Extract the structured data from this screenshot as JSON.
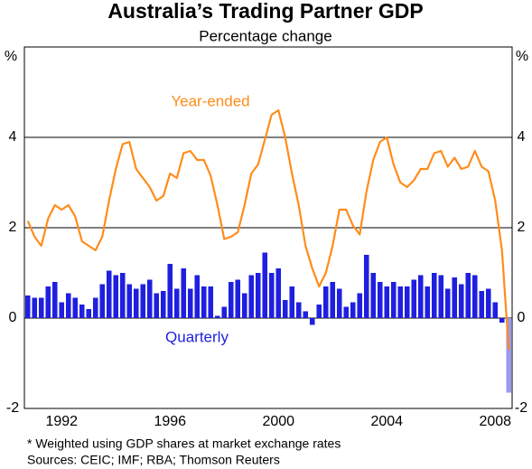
{
  "chart_data": {
    "type": "bar-line",
    "title": "Australia’s Trading Partner GDP",
    "subtitle": "Percentage change",
    "y_unit": "%",
    "annotations": [
      "Year-ended",
      "Quarterly"
    ],
    "footnotes": [
      "*  Weighted using GDP shares at market exchange rates",
      "Sources: CEIC; IMF; RBA; Thomson Reuters"
    ],
    "x": [
      1991.25,
      1991.5,
      1991.75,
      1992,
      1992.25,
      1992.5,
      1992.75,
      1993,
      1993.25,
      1993.5,
      1993.75,
      1994,
      1994.25,
      1994.5,
      1994.75,
      1995,
      1995.25,
      1995.5,
      1995.75,
      1996,
      1996.25,
      1996.5,
      1996.75,
      1997,
      1997.25,
      1997.5,
      1997.75,
      1998,
      1998.25,
      1998.5,
      1998.75,
      1999,
      1999.25,
      1999.5,
      1999.75,
      2000,
      2000.25,
      2000.5,
      2000.75,
      2001,
      2001.25,
      2001.5,
      2001.75,
      2002,
      2002.25,
      2002.5,
      2002.75,
      2003,
      2003.25,
      2003.5,
      2003.75,
      2004,
      2004.25,
      2004.5,
      2004.75,
      2005,
      2005.25,
      2005.5,
      2005.75,
      2006,
      2006.25,
      2006.5,
      2006.75,
      2007,
      2007.25,
      2007.5,
      2007.75,
      2008,
      2008.25,
      2008.5,
      2008.75,
      2009
    ],
    "xlim": [
      1991.125,
      2009.125
    ],
    "xticks": [
      {
        "value": 1992.5,
        "label": "1992"
      },
      {
        "value": 1996.5,
        "label": "1996"
      },
      {
        "value": 2000.5,
        "label": "2000"
      },
      {
        "value": 2004.5,
        "label": "2004"
      },
      {
        "value": 2008.5,
        "label": "2008"
      }
    ],
    "ylim": [
      -2,
      6
    ],
    "yticks": [
      -2,
      0,
      2,
      4
    ],
    "grid": true,
    "series": [
      {
        "name": "Quarterly",
        "kind": "bar",
        "color": "#1f1fe0",
        "colors": [
          "#1f1fe0",
          "#1f1fe0",
          "#1f1fe0",
          "#1f1fe0",
          "#1f1fe0",
          "#1f1fe0",
          "#1f1fe0",
          "#1f1fe0",
          "#1f1fe0",
          "#1f1fe0",
          "#1f1fe0",
          "#1f1fe0",
          "#1f1fe0",
          "#1f1fe0",
          "#1f1fe0",
          "#1f1fe0",
          "#1f1fe0",
          "#1f1fe0",
          "#1f1fe0",
          "#1f1fe0",
          "#1f1fe0",
          "#1f1fe0",
          "#1f1fe0",
          "#1f1fe0",
          "#1f1fe0",
          "#1f1fe0",
          "#1f1fe0",
          "#1f1fe0",
          "#1f1fe0",
          "#1f1fe0",
          "#1f1fe0",
          "#1f1fe0",
          "#1f1fe0",
          "#1f1fe0",
          "#1f1fe0",
          "#1f1fe0",
          "#1f1fe0",
          "#1f1fe0",
          "#1f1fe0",
          "#1f1fe0",
          "#1f1fe0",
          "#1f1fe0",
          "#1f1fe0",
          "#1f1fe0",
          "#1f1fe0",
          "#1f1fe0",
          "#1f1fe0",
          "#1f1fe0",
          "#1f1fe0",
          "#1f1fe0",
          "#1f1fe0",
          "#1f1fe0",
          "#1f1fe0",
          "#1f1fe0",
          "#1f1fe0",
          "#1f1fe0",
          "#1f1fe0",
          "#1f1fe0",
          "#1f1fe0",
          "#1f1fe0",
          "#1f1fe0",
          "#1f1fe0",
          "#1f1fe0",
          "#1f1fe0",
          "#1f1fe0",
          "#1f1fe0",
          "#1f1fe0",
          "#1f1fe0",
          "#1f1fe0",
          "#1f1fe0",
          "#1f1fe0",
          "#9a9af0"
        ],
        "values": [
          0.5,
          0.45,
          0.45,
          0.7,
          0.8,
          0.35,
          0.55,
          0.45,
          0.3,
          0.2,
          0.45,
          0.75,
          1.05,
          0.95,
          1.0,
          0.75,
          0.65,
          0.75,
          0.85,
          0.55,
          0.6,
          1.2,
          0.65,
          1.1,
          0.65,
          0.95,
          0.7,
          0.7,
          0.05,
          0.25,
          0.8,
          0.85,
          0.55,
          0.95,
          1.0,
          1.45,
          1.0,
          1.1,
          0.4,
          0.7,
          0.35,
          0.15,
          -0.15,
          0.3,
          0.7,
          0.8,
          0.65,
          0.25,
          0.35,
          0.55,
          1.4,
          1.0,
          0.8,
          0.7,
          0.8,
          0.7,
          0.7,
          0.85,
          0.95,
          0.7,
          1.0,
          0.95,
          0.65,
          0.9,
          0.75,
          1.0,
          0.95,
          0.6,
          0.65,
          0.35,
          -0.1,
          -1.65
        ]
      },
      {
        "name": "Year-ended",
        "kind": "line",
        "color": "#ff8c1a",
        "values": [
          2.15,
          1.8,
          1.6,
          2.2,
          2.5,
          2.4,
          2.5,
          2.25,
          1.7,
          1.6,
          1.5,
          1.8,
          2.6,
          3.3,
          3.85,
          3.9,
          3.3,
          3.1,
          2.9,
          2.6,
          2.7,
          3.2,
          3.1,
          3.65,
          3.7,
          3.5,
          3.5,
          3.15,
          2.5,
          1.75,
          1.8,
          1.9,
          2.5,
          3.2,
          3.4,
          3.95,
          4.5,
          4.6,
          4.0,
          3.2,
          2.5,
          1.6,
          1.1,
          0.7,
          1.0,
          1.6,
          2.4,
          2.4,
          2.05,
          1.85,
          2.8,
          3.5,
          3.9,
          4.0,
          3.4,
          3.0,
          2.9,
          3.05,
          3.3,
          3.3,
          3.65,
          3.7,
          3.35,
          3.55,
          3.3,
          3.35,
          3.7,
          3.35,
          3.25,
          2.6,
          1.5,
          -0.7
        ]
      }
    ]
  }
}
